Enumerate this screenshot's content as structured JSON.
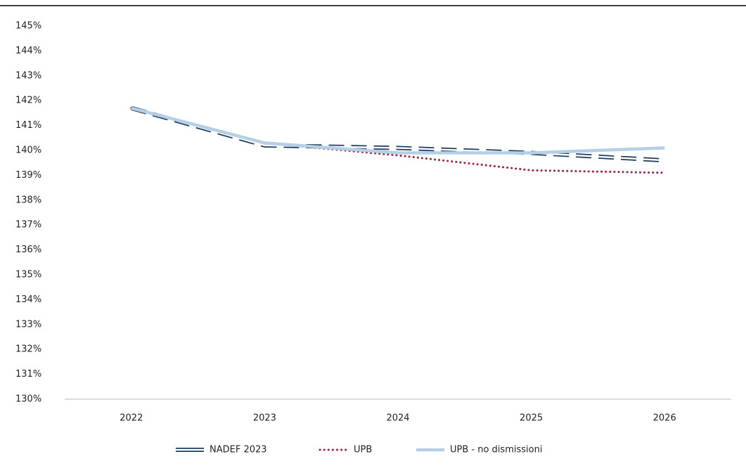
{
  "chart_data": {
    "type": "line",
    "categories": [
      "2022",
      "2023",
      "2024",
      "2025",
      "2026"
    ],
    "series": [
      {
        "name": "NADEF 2023",
        "color": "#1f3b5a",
        "style": "double-dashed",
        "values": [
          141.7,
          140.2,
          140.1,
          139.9,
          139.6
        ]
      },
      {
        "name": "UPB",
        "color": "#a0203f",
        "style": "dotted",
        "values": [
          141.7,
          140.3,
          139.8,
          139.2,
          139.1
        ]
      },
      {
        "name": "UPB - no dismissioni",
        "color": "#b4cfe6",
        "style": "solid",
        "values": [
          141.7,
          140.3,
          139.9,
          139.9,
          140.1
        ]
      }
    ],
    "ylim": [
      130,
      145
    ],
    "yticks": [
      {
        "value": 130,
        "label": "130%"
      },
      {
        "value": 131,
        "label": "131%"
      },
      {
        "value": 132,
        "label": "132%"
      },
      {
        "value": 133,
        "label": "133%"
      },
      {
        "value": 134,
        "label": "134%"
      },
      {
        "value": 135,
        "label": "135%"
      },
      {
        "value": 136,
        "label": "136%"
      },
      {
        "value": 137,
        "label": "137%"
      },
      {
        "value": 138,
        "label": "138%"
      },
      {
        "value": 139,
        "label": "139%"
      },
      {
        "value": 140,
        "label": "140%"
      },
      {
        "value": 141,
        "label": "141%"
      },
      {
        "value": 142,
        "label": "142%"
      },
      {
        "value": 143,
        "label": "143%"
      },
      {
        "value": 144,
        "label": "144%"
      },
      {
        "value": 145,
        "label": "145%"
      }
    ],
    "grid": false,
    "legend": "bottom"
  }
}
